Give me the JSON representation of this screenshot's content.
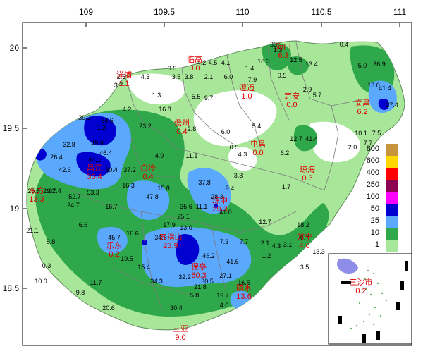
{
  "axes": {
    "x_ticks": [
      "109",
      "109.5",
      "110",
      "110.5",
      "111"
    ],
    "y_ticks": [
      "20",
      "19.5",
      "19",
      "18.5"
    ]
  },
  "legend": {
    "labels": [
      "800",
      "600",
      "400",
      "250",
      "100",
      "50",
      "25",
      "10",
      "1"
    ],
    "colors": [
      "#C9953C",
      "#FFD700",
      "#FF0000",
      "#8B0050",
      "#FF00FF",
      "#0000D0",
      "#5BA8FF",
      "#2EA84A",
      "#A8E69A"
    ]
  },
  "cities": [
    {
      "name": "临高",
      "value": "0.0"
    },
    {
      "name": "海口",
      "value": "6.3"
    },
    {
      "name": "澄迈",
      "value": "1.0"
    },
    {
      "name": "定安",
      "value": "0.0"
    },
    {
      "name": "文昌",
      "value": "6.2"
    },
    {
      "name": "儋州",
      "value": "0.4"
    },
    {
      "name": "屯昌",
      "value": "0.0"
    },
    {
      "name": "白沙",
      "value": "0.4"
    },
    {
      "name": "琼海",
      "value": "0.3"
    },
    {
      "name": "昌江",
      "value": "36.4"
    },
    {
      "name": "东方",
      "value": "13.3"
    },
    {
      "name": "琼中",
      "value": "29.3"
    },
    {
      "name": "乐东",
      "value": "0.2"
    },
    {
      "name": "五指山",
      "value": "23.9"
    },
    {
      "name": "万宁",
      "value": "4.6"
    },
    {
      "name": "保亭",
      "value": "60.3"
    },
    {
      "name": "陵水",
      "value": "13.6"
    },
    {
      "name": "三亚",
      "value": "9.0"
    },
    {
      "name": "洋浦",
      "value": "1.1"
    },
    {
      "name": "三沙市",
      "value": "0.2"
    }
  ],
  "stations": [
    "33",
    "1.3",
    "0.4",
    "0.5",
    "4.2",
    "4.5",
    "4.1",
    "18.3",
    "12.5",
    "13.4",
    "36.9",
    "5.0",
    "2.5",
    "4.3",
    "3.5",
    "3.8",
    "2.1",
    "6.0",
    "1.4",
    "7.9",
    "0.5",
    "2.9",
    "13.0",
    "41.4",
    "3.7",
    "5.5",
    "9.7",
    "1.3",
    "5.7",
    "27.4",
    "16.8",
    "4.2",
    "39.3",
    "34.6",
    "23.2",
    "1.2",
    "6.0",
    "5.4",
    "32.8",
    "49.9",
    "2.8",
    "10.1",
    "7.7",
    "7.5",
    "26.4",
    "46.4",
    "44.1",
    "4.9",
    "0.5",
    "4.3",
    "6.2",
    "12.7",
    "41.4",
    "2.0",
    "42.6",
    "30.4",
    "37.2",
    "11.1",
    "3.3",
    "37.4",
    "53.3",
    "16.3",
    "15.8",
    "37.8",
    "9.4",
    "47.8",
    "35.6",
    "11.1",
    "28.3",
    "1.7",
    "25.5",
    "29.2",
    "52.7",
    "24.7",
    "16.7",
    "25.1",
    "41.0",
    "12.7",
    "18.2",
    "8.8",
    "7.7",
    "21.1",
    "6.6",
    "13.0",
    "16.6",
    "17.9",
    "45.7",
    "34.8",
    "46.2",
    "7.3",
    "41.6",
    "19.5",
    "15.4",
    "32.2",
    "34.3",
    "27.1",
    "30.5",
    "20.6",
    "30.4",
    "10.0",
    "11.7",
    "9.8",
    "0.3",
    "2.1",
    "4.3",
    "1.2",
    "3.1",
    "16.5",
    "19.7",
    "21.8",
    "5.8",
    "4.0",
    "6.7",
    "3.5",
    "13.3"
  ],
  "colors": {
    "land_base": "#A8E69A",
    "green": "#2EA84A",
    "light_blue": "#5BA8FF",
    "dark_blue": "#0000D0",
    "no_rain": "#FFFFFF",
    "city_label": "#E00000",
    "city_value": "#E00000"
  }
}
